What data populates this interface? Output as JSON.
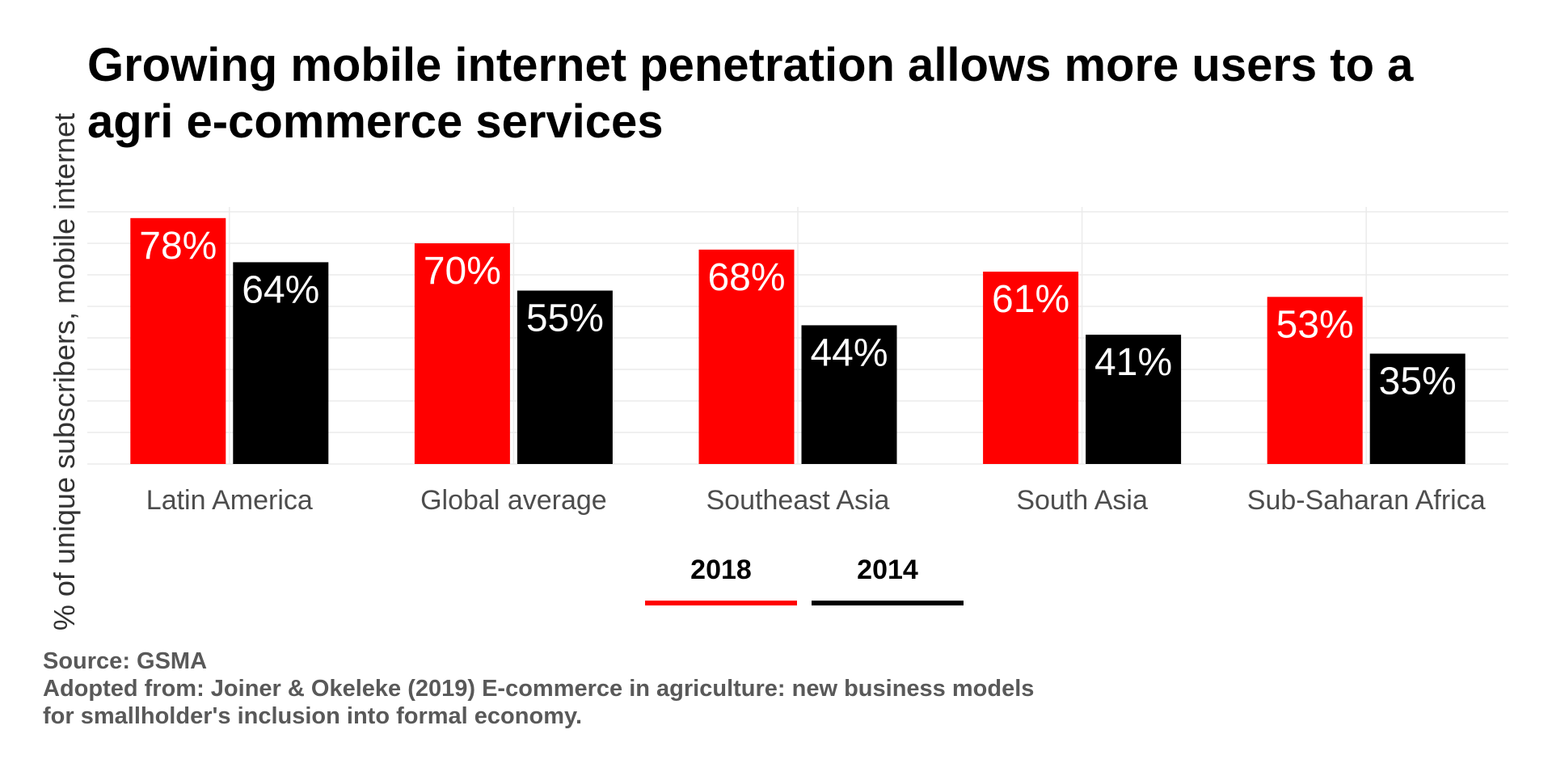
{
  "chart_data": {
    "type": "bar",
    "title_lines": [
      "Growing mobile internet penetration allows more users to a",
      "agri e-commerce services"
    ],
    "ylabel": "% of unique subscribers, mobile internet",
    "xlabel": "",
    "categories": [
      "Latin America",
      "Global average",
      "Southeast Asia",
      "South Asia",
      "Sub-Saharan Africa"
    ],
    "series": [
      {
        "name": "2018",
        "color": "#ff0000",
        "values": [
          78,
          70,
          68,
          61,
          53
        ],
        "labels": [
          "78%",
          "70%",
          "68%",
          "61%",
          "53%"
        ]
      },
      {
        "name": "2014",
        "color": "#000000",
        "values": [
          64,
          55,
          44,
          41,
          35
        ],
        "labels": [
          "64%",
          "55%",
          "44%",
          "41%",
          "35%"
        ]
      }
    ],
    "ylim": [
      0,
      80
    ],
    "grid": true,
    "legend_position": "bottom",
    "caption_lines": [
      "Source: GSMA",
      "Adopted from: Joiner & Okeleke (2019) E-commerce in agriculture: new business models",
      "for smallholder's inclusion into formal economy."
    ]
  }
}
